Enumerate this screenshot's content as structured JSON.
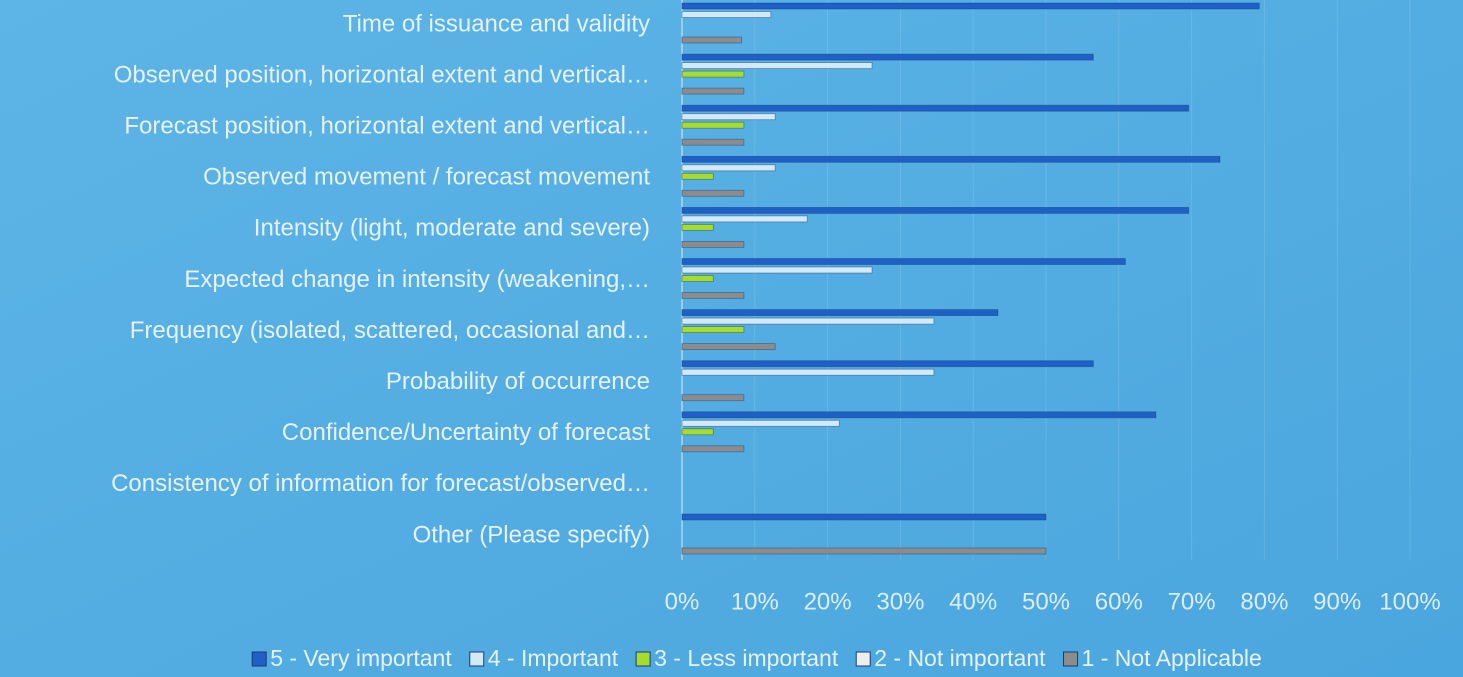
{
  "chart_data": {
    "type": "hbar",
    "categories": [
      "Time of issuance and validity",
      "Observed position, horizontal extent and vertical…",
      "Forecast position, horizontal extent and vertical…",
      "Observed movement / forecast movement",
      "Intensity (light, moderate and severe)",
      "Expected change in intensity (weakening,…",
      "Frequency (isolated, scattered, occasional and…",
      "Probability of occurrence",
      "Confidence/Uncertainty of forecast",
      "Consistency of information for forecast/observed…",
      "Other (Please specify)"
    ],
    "series": [
      {
        "name": "5 - Very important",
        "color": "#1f5fc8",
        "values": [
          79.3,
          56.5,
          69.6,
          73.9,
          69.6,
          60.9,
          43.4,
          56.5,
          65.1,
          0,
          50
        ]
      },
      {
        "name": "4 - Important",
        "color": "#d2e9f8",
        "values": [
          12.2,
          26.1,
          12.8,
          12.8,
          17.2,
          26.1,
          34.6,
          34.6,
          21.6,
          0,
          0
        ]
      },
      {
        "name": "3 - Less important",
        "color": "#a6dc2c",
        "values": [
          0,
          8.5,
          8.5,
          4.3,
          4.3,
          4.3,
          8.5,
          0,
          4.3,
          0,
          0
        ]
      },
      {
        "name": "2 - Not important",
        "color": "#eeeeee",
        "values": [
          0,
          0,
          0,
          0,
          0,
          0,
          0,
          0,
          0,
          0,
          0
        ]
      },
      {
        "name": "1 - Not Applicable",
        "color": "#8c8c8c",
        "values": [
          8.2,
          8.5,
          8.5,
          8.5,
          8.5,
          8.5,
          12.8,
          8.5,
          8.5,
          0,
          50
        ]
      }
    ],
    "xlim": [
      0,
      100
    ],
    "xticks": [
      {
        "value": 0,
        "label": "0%"
      },
      {
        "value": 10,
        "label": "10%"
      },
      {
        "value": 20,
        "label": "20%"
      },
      {
        "value": 30,
        "label": "30%"
      },
      {
        "value": 40,
        "label": "40%"
      },
      {
        "value": 50,
        "label": "50%"
      },
      {
        "value": 60,
        "label": "60%"
      },
      {
        "value": 70,
        "label": "70%"
      },
      {
        "value": 80,
        "label": "80%"
      },
      {
        "value": 90,
        "label": "90%"
      },
      {
        "value": 100,
        "label": "100%"
      }
    ],
    "grid": true,
    "legend": "bottom"
  }
}
